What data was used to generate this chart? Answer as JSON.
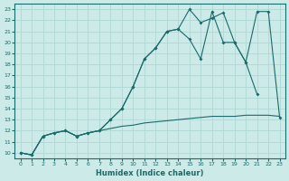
{
  "xlabel": "Humidex (Indice chaleur)",
  "background_color": "#cceae7",
  "grid_color": "#b0d8d5",
  "line_color": "#1a6b6b",
  "xlim": [
    -0.5,
    23.5
  ],
  "ylim": [
    9.5,
    23.5
  ],
  "xticks": [
    0,
    1,
    2,
    3,
    4,
    5,
    6,
    7,
    8,
    9,
    10,
    11,
    12,
    13,
    14,
    15,
    16,
    17,
    18,
    19,
    20,
    21,
    22,
    23
  ],
  "yticks": [
    10,
    11,
    12,
    13,
    14,
    15,
    16,
    17,
    18,
    19,
    20,
    21,
    22,
    23
  ],
  "line1_x": [
    0,
    1,
    2,
    3,
    4,
    5,
    6,
    7,
    8,
    9,
    10,
    11,
    12,
    13,
    14,
    15,
    16,
    17,
    18,
    19,
    20,
    21,
    22,
    23
  ],
  "line1_y": [
    10,
    9.8,
    11.5,
    11.8,
    12.0,
    11.5,
    11.8,
    12.0,
    12.2,
    12.4,
    12.5,
    12.7,
    12.8,
    12.9,
    13.0,
    13.1,
    13.2,
    13.3,
    13.3,
    13.3,
    13.4,
    13.4,
    13.4,
    13.3
  ],
  "line2_x": [
    0,
    1,
    2,
    3,
    4,
    5,
    6,
    7,
    8,
    9,
    10,
    11,
    12,
    13,
    14,
    15,
    16,
    17,
    18,
    19,
    20,
    21,
    22,
    23
  ],
  "line2_y": [
    10,
    9.8,
    11.5,
    11.8,
    12.0,
    11.5,
    11.8,
    12.0,
    13.0,
    14.0,
    16.0,
    18.5,
    19.5,
    21.0,
    21.2,
    23.0,
    21.8,
    22.2,
    22.7,
    20.0,
    18.2,
    22.8,
    22.8,
    13.2
  ],
  "line3_x": [
    0,
    1,
    2,
    3,
    4,
    5,
    6,
    7,
    8,
    9,
    10,
    11,
    12,
    13,
    14,
    15,
    16,
    17,
    18,
    19,
    20,
    21
  ],
  "line3_y": [
    10,
    9.8,
    11.5,
    11.8,
    12.0,
    11.5,
    11.8,
    12.0,
    13.0,
    14.0,
    16.0,
    18.5,
    19.5,
    21.0,
    21.2,
    20.3,
    18.5,
    22.8,
    20.0,
    20.0,
    18.2,
    15.3
  ]
}
